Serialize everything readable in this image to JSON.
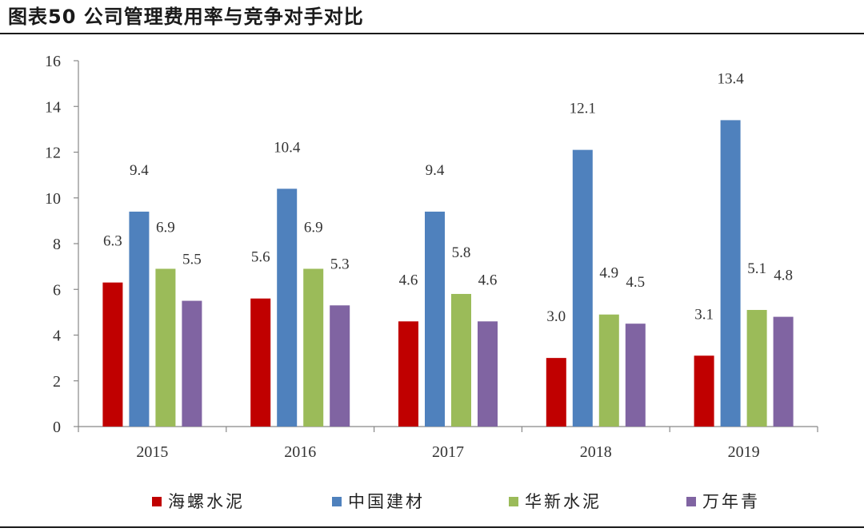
{
  "header": {
    "title": "图表50 公司管理费用率与竞争对手对比"
  },
  "chart_data": {
    "type": "bar",
    "categories": [
      "2015",
      "2016",
      "2017",
      "2018",
      "2019"
    ],
    "series": [
      {
        "name": "海螺水泥",
        "color": "#c00000",
        "values": [
          6.3,
          5.6,
          4.6,
          3.0,
          3.1
        ],
        "labels": [
          "6.3",
          "5.6",
          "4.6",
          "3.0",
          "3.1"
        ]
      },
      {
        "name": "中国建材",
        "color": "#4f81bd",
        "values": [
          9.4,
          10.4,
          9.4,
          12.1,
          13.4
        ],
        "labels": [
          "9.4",
          "10.4",
          "9.4",
          "12.1",
          "13.4"
        ]
      },
      {
        "name": "华新水泥",
        "color": "#9bbb59",
        "values": [
          6.9,
          6.9,
          5.8,
          4.9,
          5.1
        ],
        "labels": [
          "6.9",
          "6.9",
          "5.8",
          "4.9",
          "5.1"
        ]
      },
      {
        "name": "万年青",
        "color": "#8064a2",
        "values": [
          5.5,
          5.3,
          4.6,
          4.5,
          4.8
        ],
        "labels": [
          "5.5",
          "5.3",
          "4.6",
          "4.5",
          "4.8"
        ]
      }
    ],
    "ylim": [
      0,
      16
    ],
    "yticks": [
      "0",
      "2",
      "4",
      "6",
      "8",
      "10",
      "12",
      "14",
      "16"
    ],
    "grid": false,
    "legend": "bottom"
  }
}
